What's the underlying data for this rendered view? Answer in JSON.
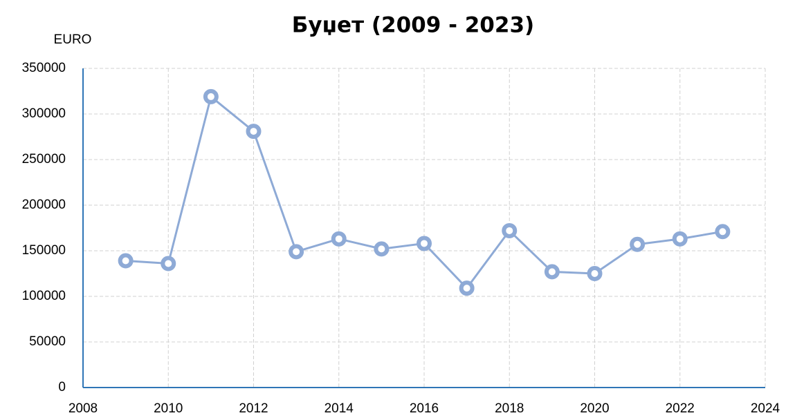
{
  "chart_data": {
    "type": "line",
    "title": "Буџет (2009 - 2023)",
    "y_label": "EURO",
    "x": [
      2009,
      2010,
      2011,
      2012,
      2013,
      2014,
      2015,
      2016,
      2017,
      2018,
      2019,
      2020,
      2021,
      2022,
      2023
    ],
    "series": [
      {
        "name": "Буџет",
        "color": "#8eaad6",
        "values": [
          139000,
          136000,
          319000,
          281000,
          149000,
          163000,
          152000,
          158000,
          109000,
          172000,
          127000,
          125000,
          157000,
          163000,
          171000
        ]
      }
    ],
    "xlim": [
      2008,
      2024
    ],
    "xticks": [
      2008,
      2010,
      2012,
      2014,
      2016,
      2018,
      2020,
      2022,
      2024
    ],
    "ylim": [
      0,
      350000
    ],
    "yticks": [
      0,
      50000,
      100000,
      150000,
      200000,
      250000,
      300000,
      350000
    ],
    "grid": true,
    "axis_color": "#2e75b6"
  }
}
